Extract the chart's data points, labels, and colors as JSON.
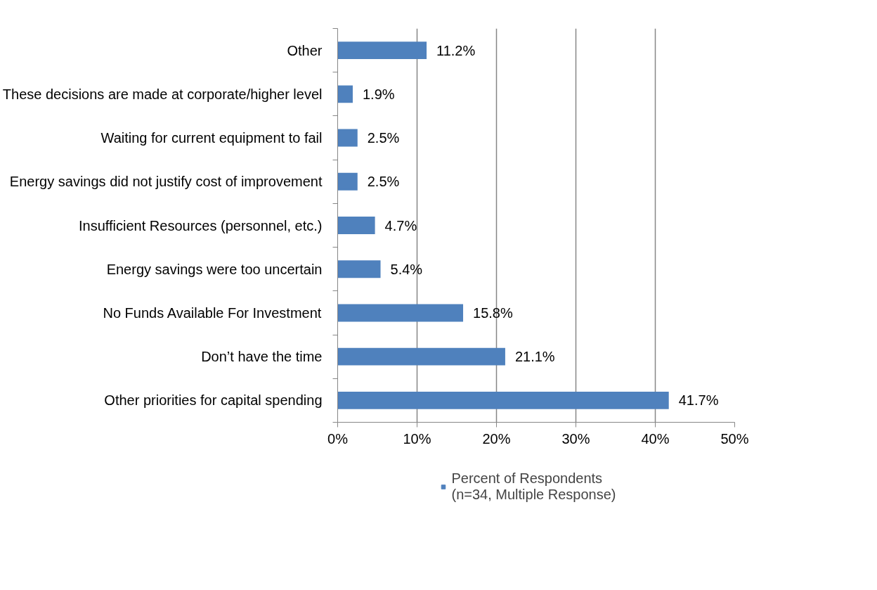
{
  "chart_data": {
    "type": "bar",
    "orientation": "horizontal",
    "categories": [
      "Other",
      "These decisions are made at corporate/higher level",
      "Waiting for current equipment to fail",
      "Energy savings did not justify cost of improvement",
      "Insufficient Resources (personnel, etc.)",
      "Energy savings were too uncertain",
      "No Funds Available For Investment",
      "Don’t have the time",
      "Other priorities for capital spending"
    ],
    "series": [
      {
        "name": "Percent of Respondents\n(n=34, Multiple Response)",
        "color": "#4f81bd",
        "values": [
          11.2,
          1.9,
          2.5,
          2.5,
          4.7,
          5.4,
          15.8,
          21.1,
          41.7
        ],
        "value_labels": [
          "11.2%",
          "1.9%",
          "2.5%",
          "2.5%",
          "4.7%",
          "5.4%",
          "15.8%",
          "21.1%",
          "41.7%"
        ]
      }
    ],
    "xlim": [
      0,
      50
    ],
    "xticks": [
      {
        "value": 0,
        "label": "0%"
      },
      {
        "value": 10,
        "label": "10%"
      },
      {
        "value": 20,
        "label": "20%"
      },
      {
        "value": 30,
        "label": "30%"
      },
      {
        "value": 40,
        "label": "40%"
      },
      {
        "value": 50,
        "label": "50%"
      }
    ],
    "grid": "x",
    "legend": "bottom"
  }
}
